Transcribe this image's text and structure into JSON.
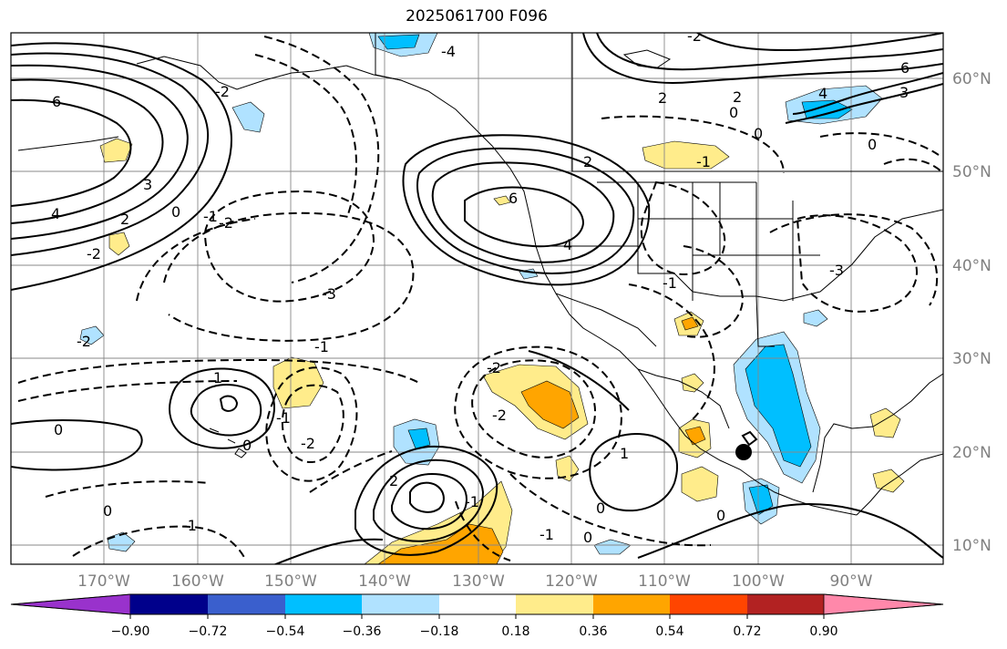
{
  "title": "2025061700 F096",
  "lon_labels": [
    "170°W",
    "160°W",
    "150°W",
    "140°W",
    "130°W",
    "120°W",
    "110°W",
    "100°W",
    "90°W"
  ],
  "lat_labels": [
    "60°N",
    "50°N",
    "40°N",
    "30°N",
    "20°N",
    "10°N"
  ],
  "colorbar": {
    "colors": [
      "#9932cc",
      "#00008b",
      "#3a5fcd",
      "#00bfff",
      "#b0e2ff",
      "#ffffff",
      "#ffec8b",
      "#ffa500",
      "#ff4500",
      "#b22222",
      "#ff88aa"
    ],
    "tick_labels": [
      "−0.90",
      "−0.72",
      "−0.54",
      "−0.36",
      "−0.18",
      "0.18",
      "0.36",
      "0.54",
      "0.72",
      "0.90"
    ]
  },
  "contour_labels": {
    "solid": [
      "6",
      "4",
      "3",
      "2",
      "6",
      "6",
      "4",
      "3",
      "2",
      "1",
      "4",
      "2",
      "2",
      "1",
      "1",
      "2",
      "0",
      "0",
      "0",
      "0",
      "0",
      "0",
      "0",
      "0",
      "0"
    ],
    "dashed": [
      "-2",
      "-2",
      "-1",
      "-3",
      "-1",
      "-2",
      "-1",
      "-4",
      "-1",
      "-1",
      "-2",
      "-2",
      "-1",
      "-1",
      "-3",
      "-1",
      "-2",
      "-1",
      "-2",
      "-1"
    ]
  }
}
